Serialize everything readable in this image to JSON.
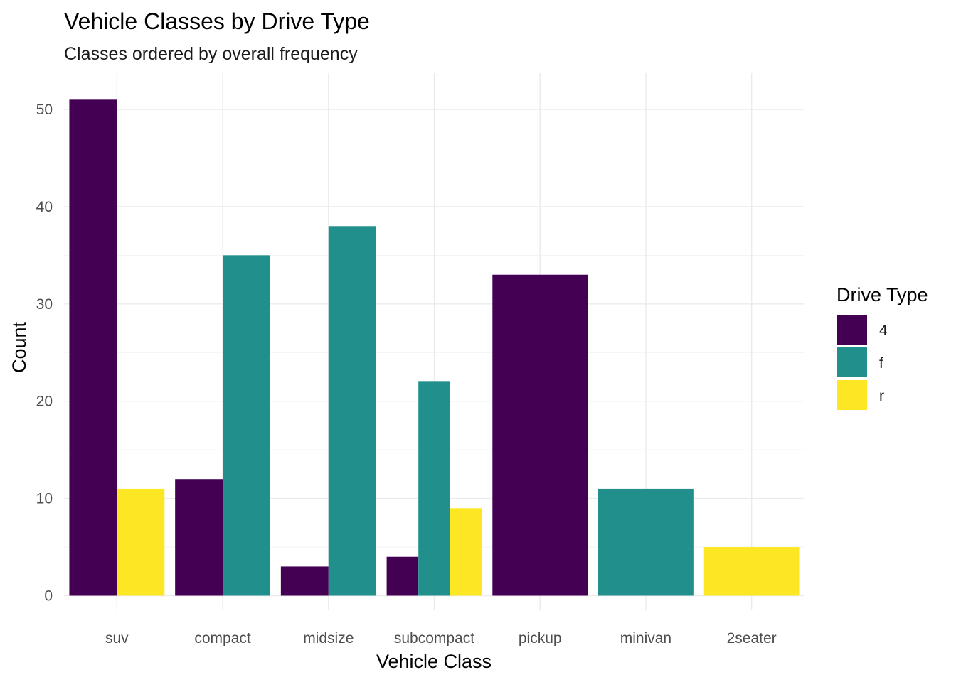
{
  "chart_data": {
    "type": "bar",
    "title": "Vehicle Classes by Drive Type",
    "subtitle": "Classes ordered by overall frequency",
    "xlabel": "Vehicle Class",
    "ylabel": "Count",
    "ylim": [
      0,
      53
    ],
    "yticks": [
      0,
      10,
      20,
      30,
      40,
      50
    ],
    "grid": true,
    "legend_title": "Drive Type",
    "legend_position": "right",
    "categories": [
      "suv",
      "compact",
      "midsize",
      "subcompact",
      "pickup",
      "minivan",
      "2seater"
    ],
    "series": [
      {
        "name": "4",
        "color": "#440154",
        "values": [
          51,
          12,
          3,
          4,
          33,
          0,
          0
        ]
      },
      {
        "name": "f",
        "color": "#21908C",
        "values": [
          0,
          35,
          38,
          22,
          0,
          11,
          0
        ]
      },
      {
        "name": "r",
        "color": "#FDE725",
        "values": [
          11,
          0,
          0,
          9,
          0,
          0,
          5
        ]
      }
    ]
  }
}
